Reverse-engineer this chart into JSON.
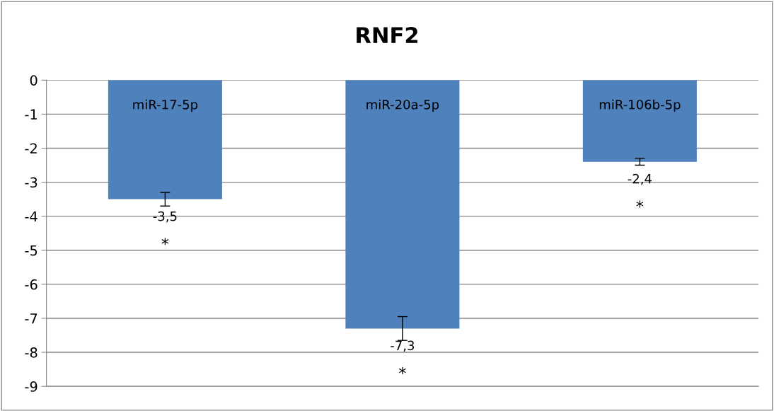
{
  "chart_data": {
    "type": "bar",
    "title": "RNF2",
    "categories": [
      "miR-17-5p",
      "miR-20a-5p",
      "miR-106b-5p"
    ],
    "values": [
      -3.5,
      -7.3,
      -2.4
    ],
    "color": "#4f81bd",
    "errors": [
      0.2,
      0.35,
      0.1
    ],
    "value_labels": [
      "-3,5",
      "-7,3",
      "-2,4"
    ],
    "ylim": [
      -9,
      0
    ],
    "yticks": [
      -9,
      -8,
      -7,
      -6,
      -5,
      -4,
      -3,
      -2,
      -1,
      0
    ],
    "grid": "y",
    "annotations": [
      "*",
      "*",
      "*"
    ]
  }
}
